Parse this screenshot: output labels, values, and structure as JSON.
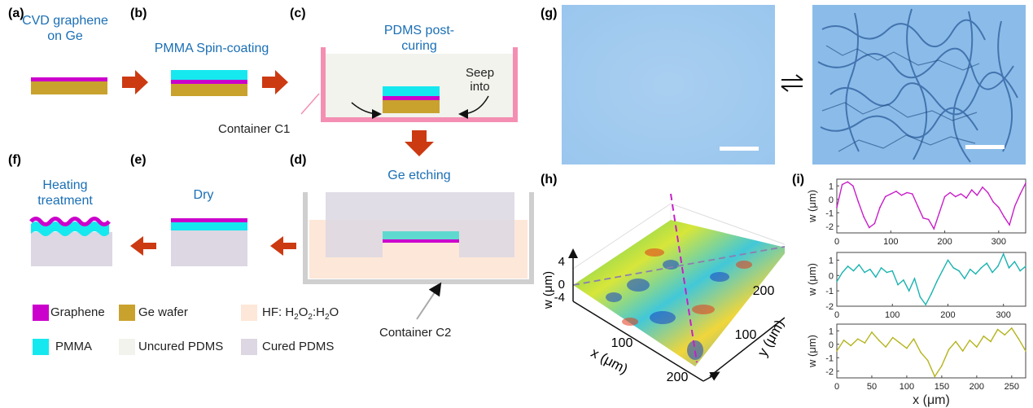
{
  "colors": {
    "graphene": "#cc00cc",
    "ge_wafer": "#c9a22e",
    "pmma": "#16e8ef",
    "uncured_pdms": "#f1f3ec",
    "cured_pdms": "#dcd7e3",
    "hf_solution": "#fde7d8",
    "arrow": "#cc3a12",
    "container_c1": "#f48fb3",
    "container_c2": "#cfcfcf",
    "step_text": "#1a6fb5",
    "plot_magenta": "#c81ec8",
    "plot_teal": "#19b3b0",
    "plot_olive": "#b4b41e"
  },
  "panels": {
    "a": {
      "label": "(a)",
      "title_line1": "CVD graphene",
      "title_line2": "on Ge"
    },
    "b": {
      "label": "(b)",
      "title": "PMMA Spin-coating"
    },
    "c": {
      "label": "(c)",
      "title_line1": "PDMS post-",
      "title_line2": "curing",
      "note_line1": "Seep",
      "note_line2": "into",
      "container": "Container C1"
    },
    "d": {
      "label": "(d)",
      "title": "Ge etching",
      "container": "Container C2"
    },
    "e": {
      "label": "(e)",
      "title": "Dry"
    },
    "f": {
      "label": "(f)",
      "title_line1": "Heating",
      "title_line2": "treatment"
    },
    "g": {
      "label": "(g)",
      "icon": "equilibrium-arrows-icon"
    },
    "h": {
      "label": "(h)",
      "z_label": "w (μm)",
      "z_ticks": [
        "4",
        "0",
        "-4"
      ],
      "x_label": "x (μm)",
      "x_ticks": [
        "100",
        "200"
      ],
      "y_label": "y (μm)",
      "y_ticks": [
        "100",
        "200"
      ]
    },
    "i": {
      "label": "(i)",
      "x_label": "x (μm)"
    }
  },
  "legend": [
    {
      "label": "Graphene",
      "color_key": "graphene"
    },
    {
      "label": "Ge wafer",
      "color_key": "ge_wafer"
    },
    {
      "label_main": "HF: H",
      "sub1": "2",
      "mid": "O",
      "sub2": "2",
      "tail": ":H",
      "sub3": "2",
      "end": "O",
      "color_key": "hf_solution"
    },
    {
      "label": "PMMA",
      "color_key": "pmma"
    },
    {
      "label": "Uncured PDMS",
      "color_key": "uncured_pdms"
    },
    {
      "label": "Cured PDMS",
      "color_key": "cured_pdms"
    }
  ],
  "chart_data": [
    {
      "type": "line",
      "ylabel": "w (μm)",
      "xlim": [
        0,
        350
      ],
      "ylim": [
        -2.5,
        1.5
      ],
      "x_ticks": [
        0,
        100,
        200,
        300
      ],
      "y_ticks": [
        1,
        0,
        -1,
        -2
      ],
      "series": [
        {
          "color": "#c81ec8",
          "x": [
            0,
            10,
            20,
            30,
            40,
            50,
            60,
            70,
            80,
            90,
            100,
            110,
            120,
            130,
            140,
            150,
            160,
            170,
            180,
            190,
            200,
            210,
            220,
            230,
            240,
            250,
            260,
            270,
            280,
            290,
            300,
            310,
            320,
            330,
            340,
            350
          ],
          "values": [
            -0.6,
            1.1,
            1.3,
            1.0,
            -0.2,
            -1.3,
            -2.1,
            -1.8,
            -0.6,
            0.2,
            0.4,
            0.6,
            0.3,
            0.5,
            0.4,
            -0.5,
            -1.4,
            -1.5,
            -2.2,
            -1.0,
            0.2,
            0.5,
            0.2,
            0.4,
            0.1,
            0.7,
            0.3,
            0.9,
            0.5,
            -0.2,
            -0.6,
            -1.3,
            -1.9,
            -0.5,
            0.4,
            1.2
          ]
        }
      ]
    },
    {
      "type": "line",
      "ylabel": "w (μm)",
      "xlim": [
        0,
        340
      ],
      "ylim": [
        -2,
        1.5
      ],
      "x_ticks": [
        0,
        100,
        200,
        300
      ],
      "y_ticks": [
        1,
        0,
        -1,
        -2
      ],
      "series": [
        {
          "color": "#19b3b0",
          "x": [
            0,
            10,
            20,
            30,
            40,
            50,
            60,
            70,
            80,
            90,
            100,
            110,
            120,
            130,
            140,
            150,
            160,
            170,
            180,
            190,
            200,
            210,
            220,
            230,
            240,
            250,
            260,
            270,
            280,
            290,
            300,
            310,
            320,
            330,
            340
          ],
          "values": [
            -0.4,
            0.2,
            0.6,
            0.3,
            0.7,
            0.2,
            0.4,
            -0.1,
            0.5,
            0.2,
            0.3,
            -0.6,
            -0.3,
            -1.0,
            -0.2,
            -1.4,
            -1.9,
            -1.2,
            -0.4,
            0.3,
            1.0,
            0.5,
            0.3,
            -0.2,
            0.4,
            0.1,
            0.5,
            0.8,
            0.2,
            0.6,
            1.4,
            0.5,
            0.9,
            0.3,
            0.6
          ]
        }
      ]
    },
    {
      "type": "line",
      "ylabel": "w (μm)",
      "xlabel": "x (μm)",
      "xlim": [
        0,
        270
      ],
      "ylim": [
        -2.5,
        1.5
      ],
      "x_ticks": [
        0,
        50,
        100,
        150,
        200,
        250
      ],
      "y_ticks": [
        1,
        0,
        -1,
        -2
      ],
      "series": [
        {
          "color": "#b4b41e",
          "x": [
            0,
            10,
            20,
            30,
            40,
            50,
            60,
            70,
            80,
            90,
            100,
            110,
            120,
            130,
            140,
            150,
            160,
            170,
            180,
            190,
            200,
            210,
            220,
            230,
            240,
            250,
            260,
            270
          ],
          "values": [
            -0.5,
            0.3,
            -0.1,
            0.4,
            0.1,
            0.9,
            0.3,
            -0.2,
            0.5,
            0.1,
            -0.3,
            0.4,
            -0.6,
            -1.2,
            -2.4,
            -1.6,
            -0.4,
            0.2,
            -0.5,
            0.3,
            -0.2,
            0.6,
            0.2,
            1.1,
            0.7,
            1.2,
            0.4,
            -0.5
          ]
        }
      ]
    }
  ]
}
